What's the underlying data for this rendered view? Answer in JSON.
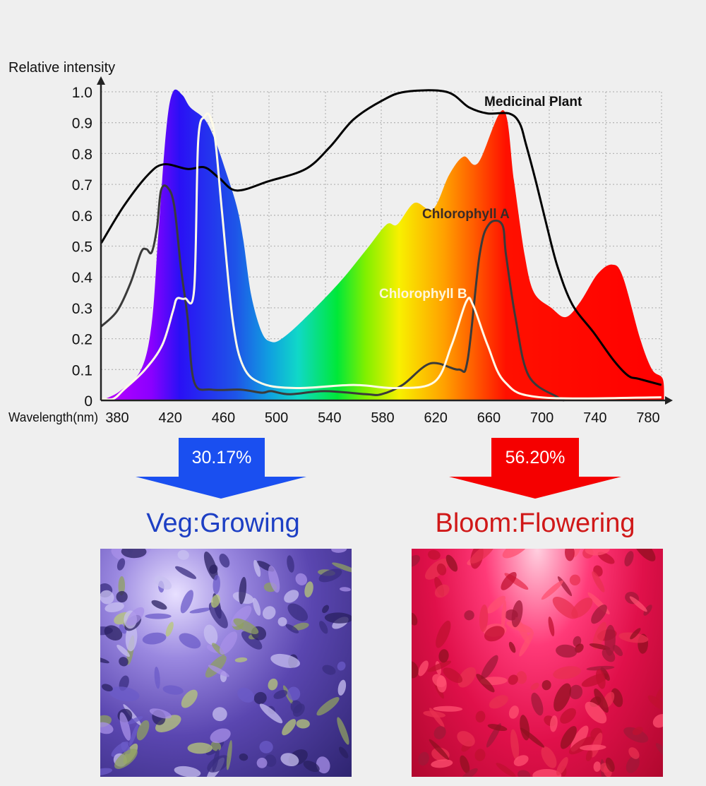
{
  "chart_data": {
    "type": "area",
    "ylabel": "Relative intensity",
    "xlabel": "Wavelength(nm)",
    "xlim": [
      368,
      792
    ],
    "ylim": [
      0,
      1.0
    ],
    "grid": true,
    "x_ticks": [
      "380",
      "420",
      "460",
      "500",
      "540",
      "580",
      "620",
      "660",
      "700",
      "740",
      "780"
    ],
    "y_ticks": [
      "0",
      "0.1",
      "0.2",
      "0.3",
      "0.4",
      "0.5",
      "0.6",
      "0.7",
      "0.8",
      "0.9",
      "1.0"
    ],
    "series": [
      {
        "kind": "filled-spectrum",
        "color": "rainbow",
        "x": [
          368,
          382,
          398,
          406,
          411,
          417,
          422,
          429,
          435,
          446,
          454,
          462,
          470,
          475,
          481,
          489,
          496,
          504,
          520,
          547,
          568,
          583,
          591,
          604,
          618,
          630,
          641,
          652,
          671,
          679,
          687,
          694,
          707,
          718,
          729,
          742,
          753,
          761,
          774,
          783,
          791,
          792
        ],
        "y": [
          0,
          0.03,
          0.1,
          0.25,
          0.54,
          0.88,
          1.0,
          0.99,
          0.95,
          0.91,
          0.84,
          0.74,
          0.63,
          0.52,
          0.34,
          0.22,
          0.19,
          0.2,
          0.26,
          0.38,
          0.49,
          0.57,
          0.57,
          0.64,
          0.62,
          0.73,
          0.79,
          0.77,
          0.94,
          0.71,
          0.47,
          0.35,
          0.3,
          0.27,
          0.32,
          0.41,
          0.44,
          0.4,
          0.2,
          0.1,
          0.07,
          0
        ]
      },
      {
        "name": "Medicinal Plant",
        "color": "#000000",
        "x": [
          368,
          385,
          403,
          415,
          433,
          446,
          457,
          470,
          494,
          522,
          540,
          558,
          579,
          597,
          628,
          645,
          659,
          675,
          683,
          688,
          696,
          704,
          712,
          723,
          739,
          754,
          765,
          773,
          790
        ],
        "y": [
          0.51,
          0.63,
          0.73,
          0.765,
          0.75,
          0.755,
          0.72,
          0.68,
          0.71,
          0.75,
          0.82,
          0.91,
          0.97,
          1.0,
          1.0,
          0.95,
          0.93,
          0.93,
          0.9,
          0.83,
          0.7,
          0.56,
          0.43,
          0.31,
          0.22,
          0.13,
          0.08,
          0.07,
          0.05
        ]
      },
      {
        "name": "Chlorophyll A",
        "color": "#3a3a3a",
        "x": [
          368,
          380,
          390,
          398,
          402,
          406,
          410,
          413,
          418,
          423,
          428,
          433,
          438,
          451,
          473,
          489,
          496,
          510,
          536,
          568,
          579,
          595,
          616,
          637,
          644,
          653,
          660,
          670,
          673,
          680,
          690,
          712,
          717
        ],
        "y": [
          0.24,
          0.29,
          0.38,
          0.48,
          0.49,
          0.48,
          0.56,
          0.68,
          0.69,
          0.63,
          0.43,
          0.27,
          0.06,
          0.035,
          0.035,
          0.025,
          0.03,
          0.02,
          0.03,
          0.02,
          0.02,
          0.05,
          0.12,
          0.1,
          0.13,
          0.47,
          0.57,
          0.57,
          0.47,
          0.27,
          0.08,
          0.01,
          0
        ]
      },
      {
        "name": "Chlorophyll B",
        "color": "#fffbe8",
        "x": [
          368,
          377,
          385,
          401,
          414,
          422,
          425,
          431,
          438,
          441,
          446,
          450,
          454,
          459,
          467,
          475,
          489,
          515,
          558,
          590,
          619,
          632,
          643,
          648,
          659,
          672,
          699,
          790
        ],
        "y": [
          0.005,
          0.005,
          0.035,
          0.1,
          0.18,
          0.29,
          0.33,
          0.33,
          0.36,
          0.84,
          0.92,
          0.92,
          0.84,
          0.61,
          0.26,
          0.11,
          0.055,
          0.04,
          0.05,
          0.04,
          0.06,
          0.18,
          0.32,
          0.31,
          0.18,
          0.06,
          0.01,
          0.01
        ]
      }
    ],
    "annotations": [
      {
        "text": "Medicinal Plant",
        "color": "#111111"
      },
      {
        "text": "Chlorophyll A",
        "color": "#3a2a26"
      },
      {
        "text": "Chlorophyll B",
        "color": "#fff6dc"
      }
    ]
  },
  "veg": {
    "percent": "30.17%",
    "label": "Veg:Growing",
    "arrow_color": "#1a4ff0",
    "text_color": "#1d3fc4"
  },
  "bloom": {
    "percent": "56.20%",
    "label": "Bloom:Flowering",
    "arrow_color": "#f50000",
    "text_color": "#d01818"
  }
}
